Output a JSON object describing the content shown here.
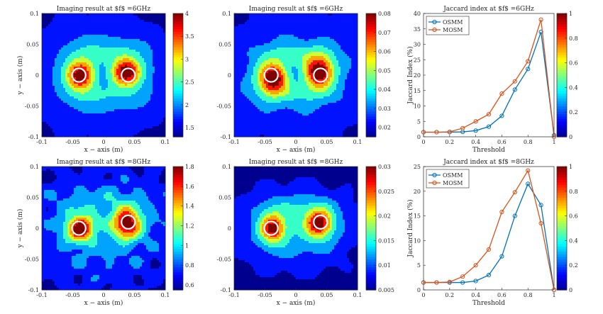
{
  "colors": {
    "jet": [
      "#00008f",
      "#0000ff",
      "#007fff",
      "#00ffff",
      "#7fff7f",
      "#ffff00",
      "#ff7f00",
      "#ff0000",
      "#7f0000"
    ],
    "osmm": "#0072bd",
    "mosm": "#d95319",
    "circle": "#ffffff"
  },
  "chart_data": [
    {
      "id": "img6a",
      "type": "heatmap",
      "field": "A",
      "title": "Imaging result at $f$ =6GHz",
      "xlabel": "x − axis (m)",
      "ylabel": "y − axis (m)",
      "xlim": [
        -0.1,
        0.1
      ],
      "ylim": [
        -0.1,
        0.1
      ],
      "xticks": [
        "-0.1",
        "-0.05",
        "0",
        "0.05",
        "0.1"
      ],
      "yticks": [
        "-0.1",
        "-0.05",
        "0",
        "0.05",
        "0.1"
      ],
      "colorbar": {
        "range": [
          1.3,
          4
        ],
        "ticks": [
          "1.5",
          "2",
          "2.5",
          "3",
          "3.5",
          "4"
        ],
        "tick_values": [
          1.5,
          2,
          2.5,
          3,
          3.5,
          4
        ]
      },
      "targets": [
        {
          "x": -0.04,
          "y": 0,
          "r": 0.011
        },
        {
          "x": 0.04,
          "y": 0,
          "r": 0.011
        }
      ]
    },
    {
      "id": "img6b",
      "type": "heatmap",
      "field": "B",
      "title": "Imaging result at $f$ =6GHz",
      "xlabel": "x − axis (m)",
      "ylabel": "",
      "xlim": [
        -0.1,
        0.1
      ],
      "ylim": [
        -0.1,
        0.1
      ],
      "xticks": [
        "-0.1",
        "-0.05",
        "0",
        "0.05",
        "0.1"
      ],
      "yticks": [
        "-0.1",
        "-0.05",
        "0",
        "0.05",
        "0.1"
      ],
      "colorbar": {
        "range": [
          0.015,
          0.08
        ],
        "ticks": [
          "0.02",
          "0.03",
          "0.04",
          "0.05",
          "0.06",
          "0.07",
          "0.08"
        ],
        "tick_values": [
          0.02,
          0.03,
          0.04,
          0.05,
          0.06,
          0.07,
          0.08
        ]
      },
      "targets": [
        {
          "x": -0.04,
          "y": 0,
          "r": 0.011
        },
        {
          "x": 0.04,
          "y": 0,
          "r": 0.011
        }
      ]
    },
    {
      "id": "jac6",
      "type": "line",
      "title": "Jaccard index at $f$ =6GHz",
      "xlabel": "Threshold",
      "ylabel": "Jaccard Index (%)",
      "x": [
        0,
        0.1,
        0.2,
        0.3,
        0.4,
        0.5,
        0.6,
        0.7,
        0.8,
        0.9,
        1
      ],
      "xlim": [
        0,
        1
      ],
      "ylim": [
        0,
        40
      ],
      "xticks": [
        "0",
        "0.2",
        "0.4",
        "0.6",
        "0.8",
        "1"
      ],
      "xtick_values": [
        0,
        0.2,
        0.4,
        0.6,
        0.8,
        1
      ],
      "yticks": [
        "0",
        "5",
        "10",
        "15",
        "20",
        "25",
        "30",
        "35",
        "40"
      ],
      "ytick_values": [
        0,
        5,
        10,
        15,
        20,
        25,
        30,
        35,
        40
      ],
      "series": [
        {
          "name": "OSMM",
          "values": [
            1.5,
            1.5,
            1.5,
            1.6,
            2.0,
            3.3,
            6.8,
            15.3,
            22.0,
            34.0,
            0.5
          ]
        },
        {
          "name": "MOSM",
          "values": [
            1.5,
            1.5,
            1.6,
            2.8,
            5.0,
            7.3,
            14.0,
            18.0,
            24.5,
            38.0,
            0.0
          ]
        }
      ],
      "legend": "top-left",
      "colorbar": {
        "range": [
          0,
          1
        ],
        "ticks": [
          "0",
          "0.2",
          "0.4",
          "0.6",
          "0.8",
          "1"
        ],
        "tick_values": [
          0,
          0.2,
          0.4,
          0.6,
          0.8,
          1
        ]
      }
    },
    {
      "id": "img8a",
      "type": "heatmap",
      "field": "C",
      "title": "Imaging result at $f$ =8GHz",
      "xlabel": "x − axis (m)",
      "ylabel": "y − axis (m)",
      "xlim": [
        -0.1,
        0.1
      ],
      "ylim": [
        -0.1,
        0.1
      ],
      "xticks": [
        "-0.1",
        "-0.05",
        "0",
        "0.05",
        "0.1"
      ],
      "yticks": [
        "-0.1",
        "-0.05",
        "0",
        "0.05",
        "0.1"
      ],
      "colorbar": {
        "range": [
          0.55,
          1.8
        ],
        "ticks": [
          "0.6",
          "0.8",
          "1",
          "1.2",
          "1.4",
          "1.6",
          "1.8"
        ],
        "tick_values": [
          0.6,
          0.8,
          1,
          1.2,
          1.4,
          1.6,
          1.8
        ]
      },
      "targets": [
        {
          "x": -0.04,
          "y": 0,
          "r": 0.011
        },
        {
          "x": 0.04,
          "y": 0.01,
          "r": 0.011
        }
      ]
    },
    {
      "id": "img8b",
      "type": "heatmap",
      "field": "D",
      "title": "Imaging result at $f$ =8GHz",
      "xlabel": "x − axis (m)",
      "ylabel": "",
      "xlim": [
        -0.1,
        0.1
      ],
      "ylim": [
        -0.1,
        0.1
      ],
      "xticks": [
        "-0.1",
        "-0.05",
        "0",
        "0.05",
        "0.1"
      ],
      "yticks": [
        "-0.1",
        "-0.05",
        "0",
        "0.05",
        "0.1"
      ],
      "colorbar": {
        "range": [
          0.005,
          0.03
        ],
        "ticks": [
          "0.005",
          "0.01",
          "0.015",
          "0.02",
          "0.025",
          "0.03"
        ],
        "tick_values": [
          0.005,
          0.01,
          0.015,
          0.02,
          0.025,
          0.03
        ]
      },
      "targets": [
        {
          "x": -0.04,
          "y": 0,
          "r": 0.011
        },
        {
          "x": 0.04,
          "y": 0.01,
          "r": 0.011
        }
      ]
    },
    {
      "id": "jac8",
      "type": "line",
      "title": "Jaccard index at $f$ =8GHz",
      "xlabel": "Threshold",
      "ylabel": "Jaccard Index (%)",
      "x": [
        0,
        0.1,
        0.2,
        0.3,
        0.4,
        0.5,
        0.6,
        0.7,
        0.8,
        0.9,
        1
      ],
      "xlim": [
        0,
        1
      ],
      "ylim": [
        0,
        25
      ],
      "xticks": [
        "0",
        "0.2",
        "0.4",
        "0.6",
        "0.8",
        "1"
      ],
      "xtick_values": [
        0,
        0.2,
        0.4,
        0.6,
        0.8,
        1
      ],
      "yticks": [
        "0",
        "5",
        "10",
        "15",
        "20",
        "25"
      ],
      "ytick_values": [
        0,
        5,
        10,
        15,
        20,
        25
      ],
      "series": [
        {
          "name": "OSMM",
          "values": [
            1.5,
            1.5,
            1.5,
            1.5,
            1.8,
            3.0,
            6.8,
            15.0,
            21.5,
            17.2,
            0.0
          ]
        },
        {
          "name": "MOSM",
          "values": [
            1.5,
            1.5,
            1.6,
            2.7,
            5.0,
            8.2,
            15.8,
            19.8,
            24.2,
            13.5,
            0.0
          ]
        }
      ],
      "legend": "top-left",
      "colorbar": {
        "range": [
          0,
          1
        ],
        "ticks": [
          "0",
          "0.2",
          "0.4",
          "0.6",
          "0.8",
          "1"
        ],
        "tick_values": [
          0,
          0.2,
          0.4,
          0.6,
          0.8,
          1
        ]
      }
    }
  ]
}
